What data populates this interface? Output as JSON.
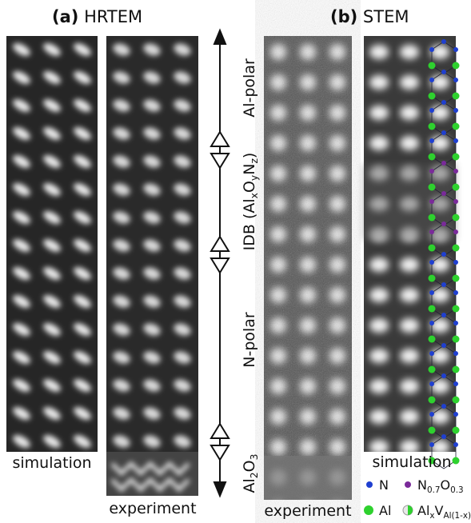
{
  "panel_a": {
    "label": "(a)",
    "title": "HRTEM",
    "sim_caption": "simulation",
    "exp_caption": "experiment"
  },
  "panel_b": {
    "label": "(b)",
    "title": "STEM",
    "exp_caption": "experiment",
    "sim_caption": "simulation"
  },
  "regions": {
    "al_polar": "Al-polar",
    "idb": [
      "IDB (Al",
      "x",
      "O",
      "y",
      "N",
      "z",
      ")"
    ],
    "n_polar": "N-polar",
    "al2o3": [
      "Al",
      "2",
      "O",
      "3"
    ]
  },
  "legend": {
    "n": "N",
    "n_o": [
      "N",
      "0.7",
      "O",
      "0.3"
    ],
    "al": "Al",
    "al_v": [
      "Al",
      "x",
      "V",
      "Al(1-x)"
    ]
  }
}
